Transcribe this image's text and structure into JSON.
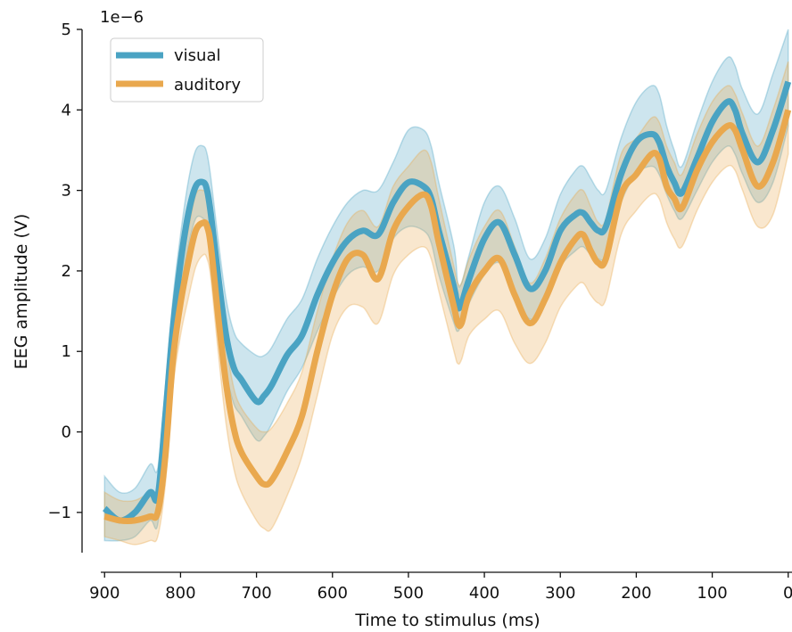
{
  "chart_data": {
    "type": "line",
    "xlabel": "Time to stimulus (ms)",
    "ylabel": "EEG amplitude (V)",
    "y_offset_label": "1e−6",
    "xlim": [
      905,
      -5
    ],
    "ylim": [
      -1.5,
      5
    ],
    "x_ticks": [
      900,
      800,
      700,
      600,
      500,
      400,
      300,
      200,
      100,
      0
    ],
    "x_tick_labels": [
      "900",
      "800",
      "700",
      "600",
      "500",
      "400",
      "300",
      "200",
      "100",
      "0"
    ],
    "y_ticks": [
      -1,
      0,
      1,
      2,
      3,
      4,
      5
    ],
    "y_tick_labels": [
      "−1",
      "0",
      "1",
      "2",
      "3",
      "4",
      "5"
    ],
    "grid": false,
    "legend_position": "top-left",
    "series": [
      {
        "name": "visual",
        "color": "#4aa3c3",
        "x": [
          900,
          880,
          860,
          840,
          830,
          820,
          810,
          800,
          790,
          780,
          770,
          765,
          760,
          750,
          740,
          730,
          720,
          700,
          690,
          680,
          660,
          640,
          620,
          600,
          580,
          560,
          540,
          520,
          500,
          480,
          470,
          460,
          440,
          435,
          430,
          420,
          400,
          380,
          360,
          340,
          320,
          300,
          280,
          270,
          260,
          250,
          240,
          220,
          200,
          180,
          170,
          160,
          150,
          140,
          120,
          100,
          80,
          70,
          60,
          40,
          20,
          0
        ],
        "y": [
          -0.95,
          -1.1,
          -1.0,
          -0.75,
          -0.8,
          0.2,
          1.3,
          2.1,
          2.7,
          3.05,
          3.1,
          3.0,
          2.7,
          1.9,
          1.2,
          0.8,
          0.65,
          0.38,
          0.45,
          0.58,
          0.95,
          1.2,
          1.7,
          2.1,
          2.38,
          2.5,
          2.45,
          2.85,
          3.1,
          3.05,
          2.9,
          2.5,
          1.8,
          1.55,
          1.6,
          1.9,
          2.4,
          2.6,
          2.2,
          1.78,
          2.0,
          2.5,
          2.7,
          2.72,
          2.6,
          2.5,
          2.55,
          3.2,
          3.6,
          3.7,
          3.6,
          3.3,
          3.1,
          2.97,
          3.4,
          3.85,
          4.1,
          4.0,
          3.7,
          3.35,
          3.75,
          4.35
        ],
        "ci_low": [
          -1.35,
          -1.35,
          -1.3,
          -1.1,
          -1.15,
          -0.15,
          0.95,
          1.75,
          2.3,
          2.65,
          2.65,
          2.55,
          2.25,
          1.45,
          0.75,
          0.35,
          0.2,
          -0.1,
          -0.05,
          0.1,
          0.5,
          0.8,
          1.25,
          1.65,
          1.95,
          2.05,
          2.0,
          2.4,
          2.55,
          2.5,
          2.35,
          1.95,
          1.35,
          1.25,
          1.35,
          1.6,
          1.95,
          2.1,
          1.75,
          1.4,
          1.6,
          2.05,
          2.25,
          2.3,
          2.2,
          2.15,
          2.2,
          2.85,
          3.2,
          3.3,
          3.2,
          2.95,
          2.75,
          2.65,
          3.0,
          3.35,
          3.55,
          3.45,
          3.2,
          2.85,
          3.1,
          3.8
        ],
        "ci_high": [
          -0.55,
          -0.75,
          -0.7,
          -0.4,
          -0.45,
          0.55,
          1.65,
          2.45,
          3.1,
          3.5,
          3.55,
          3.45,
          3.15,
          2.35,
          1.65,
          1.25,
          1.1,
          0.95,
          0.95,
          1.05,
          1.4,
          1.65,
          2.15,
          2.55,
          2.85,
          3.0,
          3.0,
          3.35,
          3.75,
          3.75,
          3.55,
          3.1,
          2.3,
          1.85,
          1.85,
          2.2,
          2.85,
          3.05,
          2.65,
          2.15,
          2.4,
          2.95,
          3.25,
          3.3,
          3.15,
          3.0,
          3.0,
          3.65,
          4.1,
          4.3,
          4.2,
          3.8,
          3.5,
          3.3,
          3.85,
          4.35,
          4.65,
          4.55,
          4.25,
          3.95,
          4.45,
          5.0
        ]
      },
      {
        "name": "auditory",
        "color": "#e9a84e",
        "x": [
          900,
          880,
          860,
          840,
          830,
          820,
          810,
          800,
          790,
          780,
          770,
          765,
          760,
          750,
          740,
          730,
          720,
          700,
          690,
          680,
          660,
          640,
          620,
          600,
          580,
          560,
          540,
          520,
          500,
          480,
          470,
          460,
          440,
          435,
          430,
          420,
          400,
          380,
          360,
          340,
          320,
          300,
          280,
          270,
          260,
          250,
          240,
          220,
          200,
          180,
          170,
          160,
          150,
          140,
          120,
          100,
          80,
          70,
          60,
          40,
          20,
          0
        ],
        "y": [
          -1.05,
          -1.1,
          -1.1,
          -1.05,
          -1.0,
          -0.3,
          0.9,
          1.6,
          2.1,
          2.5,
          2.6,
          2.55,
          2.3,
          1.4,
          0.6,
          0.05,
          -0.25,
          -0.55,
          -0.65,
          -0.6,
          -0.25,
          0.2,
          1.0,
          1.7,
          2.15,
          2.2,
          1.9,
          2.5,
          2.8,
          2.95,
          2.8,
          2.35,
          1.55,
          1.35,
          1.35,
          1.7,
          2.0,
          2.15,
          1.7,
          1.35,
          1.65,
          2.1,
          2.4,
          2.45,
          2.25,
          2.1,
          2.15,
          2.95,
          3.2,
          3.45,
          3.4,
          3.05,
          2.9,
          2.78,
          3.25,
          3.6,
          3.8,
          3.75,
          3.5,
          3.05,
          3.35,
          4.0
        ],
        "ci_low": [
          -1.3,
          -1.35,
          -1.4,
          -1.35,
          -1.3,
          -0.65,
          0.55,
          1.2,
          1.65,
          2.05,
          2.2,
          2.15,
          1.9,
          0.95,
          0.1,
          -0.45,
          -0.75,
          -1.1,
          -1.2,
          -1.2,
          -0.8,
          -0.3,
          0.45,
          1.2,
          1.55,
          1.55,
          1.35,
          1.95,
          2.2,
          2.3,
          2.15,
          1.75,
          1.0,
          0.85,
          0.9,
          1.2,
          1.4,
          1.5,
          1.1,
          0.85,
          1.1,
          1.55,
          1.8,
          1.85,
          1.7,
          1.6,
          1.65,
          2.45,
          2.75,
          2.95,
          2.9,
          2.6,
          2.4,
          2.3,
          2.75,
          3.1,
          3.3,
          3.25,
          3.0,
          2.55,
          2.7,
          3.45
        ],
        "ci_high": [
          -0.75,
          -0.85,
          -0.85,
          -0.75,
          -0.7,
          0.05,
          1.25,
          2.0,
          2.5,
          2.95,
          3.0,
          2.95,
          2.7,
          1.85,
          1.1,
          0.55,
          0.3,
          0.05,
          0.0,
          0.05,
          0.35,
          0.75,
          1.5,
          2.15,
          2.6,
          2.75,
          2.55,
          3.05,
          3.3,
          3.5,
          3.35,
          2.9,
          2.05,
          1.85,
          1.85,
          2.15,
          2.55,
          2.75,
          2.3,
          1.85,
          2.15,
          2.65,
          2.95,
          3.0,
          2.8,
          2.6,
          2.65,
          3.45,
          3.65,
          3.9,
          3.85,
          3.55,
          3.35,
          3.2,
          3.7,
          4.1,
          4.3,
          4.2,
          3.95,
          3.55,
          4.0,
          4.6
        ]
      }
    ]
  }
}
